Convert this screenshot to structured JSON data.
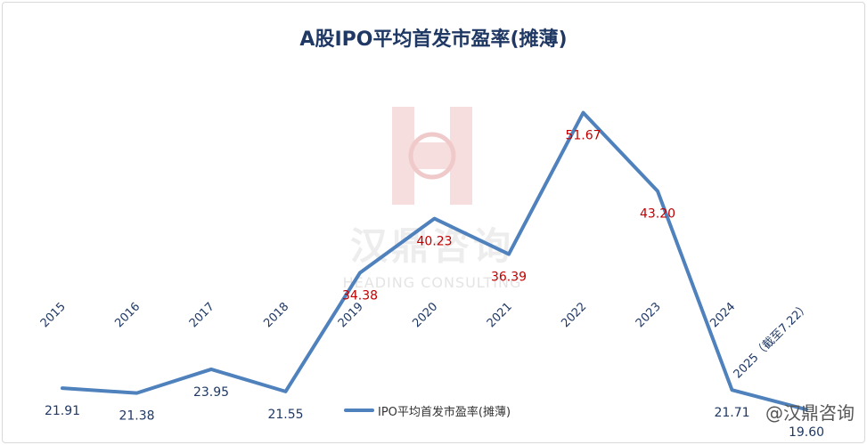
{
  "chart_data": {
    "type": "line",
    "title": "A股IPO平均首发市盈率(摊薄)",
    "categories": [
      "2015",
      "2016",
      "2017",
      "2018",
      "2019",
      "2020",
      "2021",
      "2022",
      "2023",
      "2024",
      "2025（截至7.22）"
    ],
    "series": [
      {
        "name": "IPO平均首发市盈率(摊薄)",
        "values": [
          21.91,
          21.38,
          23.95,
          21.55,
          34.38,
          40.23,
          36.39,
          51.67,
          43.2,
          21.71,
          19.6
        ],
        "labels": [
          "21.91",
          "21.38",
          "23.95",
          "21.55",
          "34.38",
          "40.23",
          "36.39",
          "51.67",
          "43.20",
          "21.71",
          "19.60"
        ]
      }
    ],
    "label_colors": [
      "#1f3864",
      "#1f3864",
      "#1f3864",
      "#1f3864",
      "#c00000",
      "#c00000",
      "#c00000",
      "#c00000",
      "#c00000",
      "#1f3864",
      "#1f3864"
    ],
    "line_color": "#4f81bd",
    "y_range": [
      10,
      60
    ],
    "grid": false,
    "legend_position": "bottom"
  },
  "watermark": {
    "cn": "汉鼎咨询",
    "en": "HEADING CONSULTING",
    "corner": "@汉鼎咨询"
  },
  "colors": {
    "title": "#1f3864",
    "axis_text": "#1f3864",
    "highlight_label": "#c00000",
    "watermark_red": "#f2d4d4"
  }
}
